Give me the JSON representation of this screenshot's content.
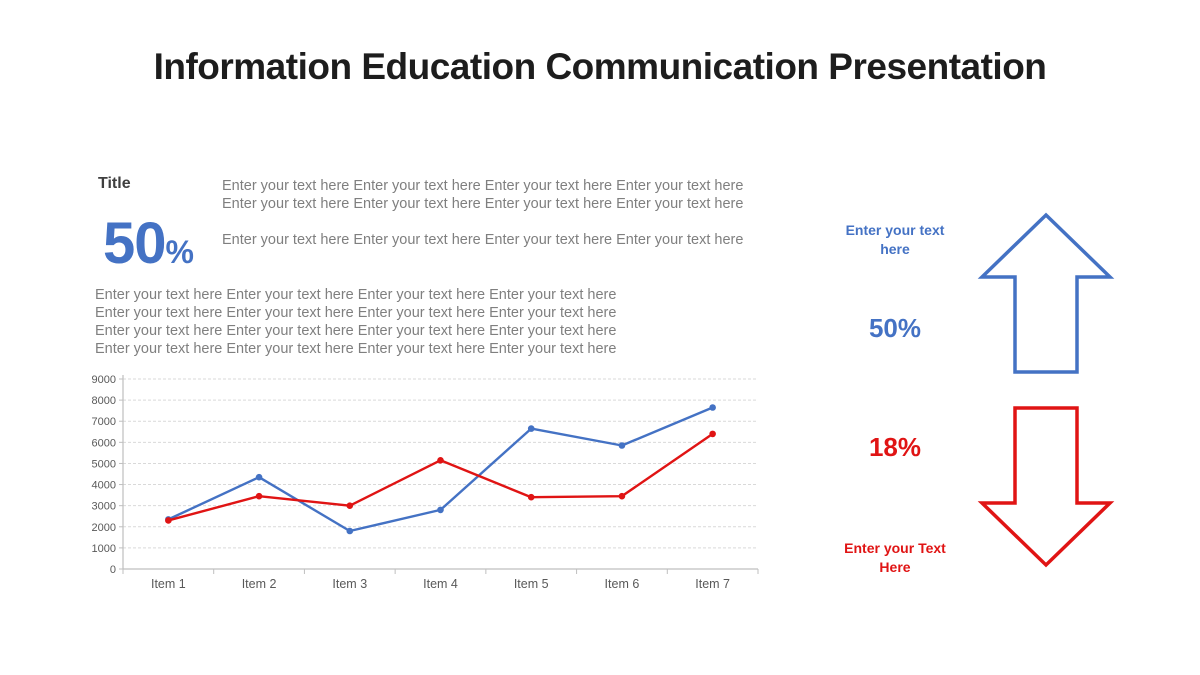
{
  "slide": {
    "title": "Information Education Communication Presentation"
  },
  "left_section": {
    "heading": "Title",
    "stat": {
      "number": "50",
      "percent": "%"
    },
    "intro_lines": [
      "Enter your text here Enter your text here Enter your text here Enter your text here",
      "Enter your text here Enter your text here Enter your text here Enter your text here",
      "Enter your text here Enter your text here Enter your text here Enter your text here"
    ],
    "body_lines": [
      "Enter your text here Enter your text here Enter your text here Enter your text here",
      "Enter your text here Enter your text here Enter your text here Enter your text here",
      "Enter your text here Enter your text here Enter your text here Enter your text here",
      "Enter your text here Enter your text here Enter your text here Enter your text here"
    ]
  },
  "right_section": {
    "up": {
      "caption_top": "Enter your text",
      "caption_bottom": "here",
      "value": "50%"
    },
    "down": {
      "value": "18%",
      "caption_top": "Enter your Text",
      "caption_bottom": "Here"
    }
  },
  "colors": {
    "accent_blue": "#4472c4",
    "accent_red": "#e01414",
    "title_black": "#1d1d1d",
    "body_text_gray": "#7f7f7f",
    "axis_text_gray": "#595959",
    "axis_line_gray": "#bfbfbf",
    "gridline_gray": "#d9d9d9"
  },
  "chart_data": {
    "type": "line",
    "categories": [
      "Item 1",
      "Item 2",
      "Item 3",
      "Item 4",
      "Item 5",
      "Item 6",
      "Item 7"
    ],
    "series": [
      {
        "name": "blue-series",
        "color": "#4472c4",
        "values": [
          2350,
          4350,
          1800,
          2800,
          6650,
          5850,
          7650
        ]
      },
      {
        "name": "red-series",
        "color": "#e01414",
        "values": [
          2300,
          3450,
          3000,
          5150,
          3400,
          3450,
          6400
        ]
      }
    ],
    "title": "",
    "xlabel": "",
    "ylabel": "",
    "ylim": [
      0,
      9000
    ],
    "ytick_step": 1000,
    "grid": "horizontal-dashed",
    "legend": "none",
    "markers": true
  }
}
